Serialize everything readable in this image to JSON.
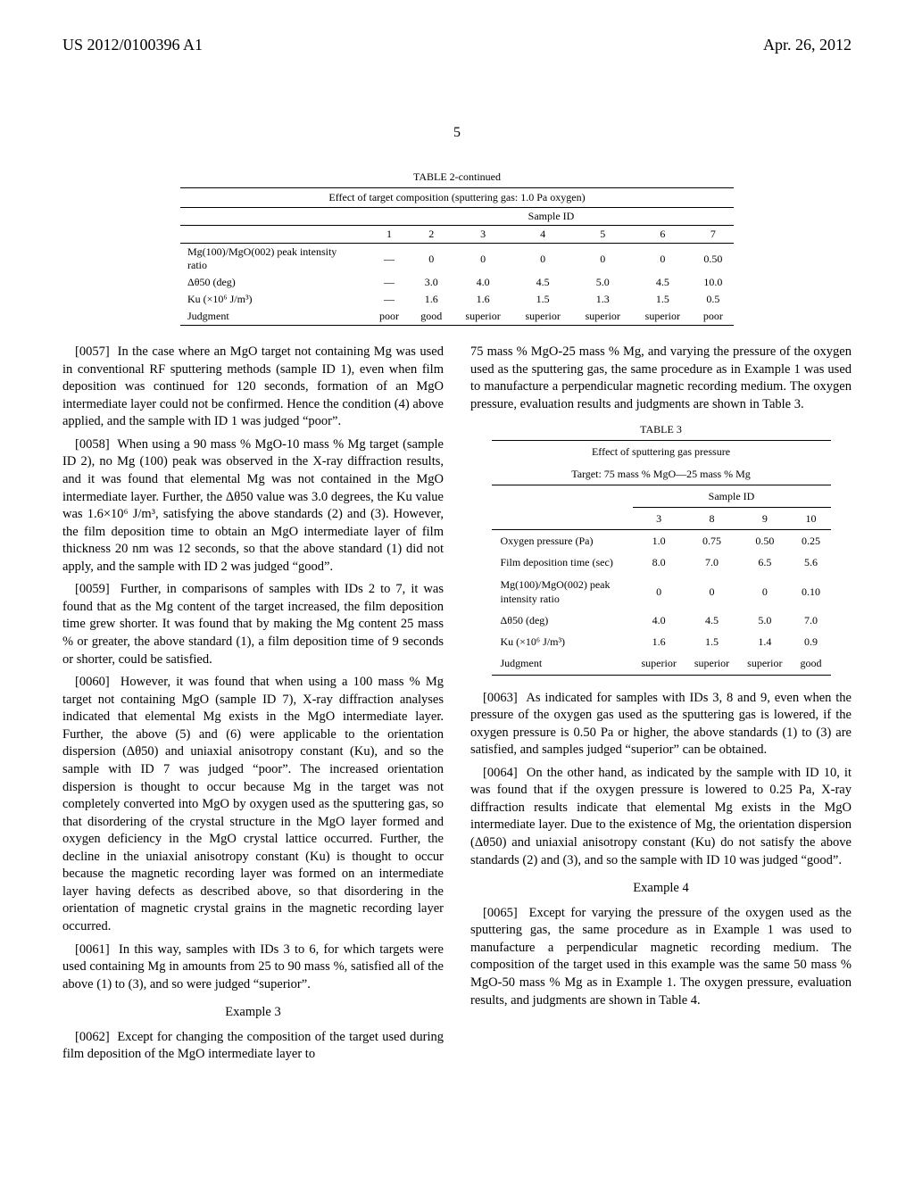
{
  "header": {
    "left": "US 2012/0100396 A1",
    "right": "Apr. 26, 2012",
    "page_number": "5"
  },
  "table2": {
    "title": "TABLE 2-continued",
    "caption": "Effect of target composition (sputtering gas: 1.0 Pa oxygen)",
    "sample_header": "Sample ID",
    "ids": [
      "1",
      "2",
      "3",
      "4",
      "5",
      "6",
      "7"
    ],
    "rows": [
      {
        "label": "Mg(100)/MgO(002) peak intensity ratio",
        "values": [
          "—",
          "0",
          "0",
          "0",
          "0",
          "0",
          "0.50"
        ]
      },
      {
        "label": "Δθ50 (deg)",
        "values": [
          "—",
          "3.0",
          "4.0",
          "4.5",
          "5.0",
          "4.5",
          "10.0"
        ]
      },
      {
        "label": "Ku (×10⁶ J/m³)",
        "values": [
          "—",
          "1.6",
          "1.6",
          "1.5",
          "1.3",
          "1.5",
          "0.5"
        ]
      },
      {
        "label": "Judgment",
        "values": [
          "poor",
          "good",
          "superior",
          "superior",
          "superior",
          "superior",
          "poor"
        ]
      }
    ]
  },
  "table3": {
    "title": "TABLE 3",
    "caption1": "Effect of sputtering gas pressure",
    "caption2": "Target: 75 mass % MgO—25 mass % Mg",
    "sample_header": "Sample ID",
    "ids": [
      "3",
      "8",
      "9",
      "10"
    ],
    "rows": [
      {
        "label": "Oxygen pressure (Pa)",
        "values": [
          "1.0",
          "0.75",
          "0.50",
          "0.25"
        ]
      },
      {
        "label": "Film deposition time (sec)",
        "values": [
          "8.0",
          "7.0",
          "6.5",
          "5.6"
        ]
      },
      {
        "label": "Mg(100)/MgO(002) peak intensity ratio",
        "values": [
          "0",
          "0",
          "0",
          "0.10"
        ]
      },
      {
        "label": "Δθ50 (deg)",
        "values": [
          "4.0",
          "4.5",
          "5.0",
          "7.0"
        ]
      },
      {
        "label": "Ku (×10⁶ J/m³)",
        "values": [
          "1.6",
          "1.5",
          "1.4",
          "0.9"
        ]
      },
      {
        "label": "Judgment",
        "values": [
          "superior",
          "superior",
          "superior",
          "good"
        ]
      }
    ]
  },
  "paragraphs_left": [
    {
      "num": "[0057]",
      "text": "In the case where an MgO target not containing Mg was used in conventional RF sputtering methods (sample ID 1), even when film deposition was continued for 120 seconds, formation of an MgO intermediate layer could not be confirmed. Hence the condition (4) above applied, and the sample with ID 1 was judged “poor”."
    },
    {
      "num": "[0058]",
      "text": "When using a 90 mass % MgO-10 mass % Mg target (sample ID 2), no Mg (100) peak was observed in the X-ray diffraction results, and it was found that elemental Mg was not contained in the MgO intermediate layer. Further, the Δθ50 value was 3.0 degrees, the Ku value was 1.6×10⁶ J/m³, satisfying the above standards (2) and (3). However, the film deposition time to obtain an MgO intermediate layer of film thickness 20 nm was 12 seconds, so that the above standard (1) did not apply, and the sample with ID 2 was judged “good”."
    },
    {
      "num": "[0059]",
      "text": "Further, in comparisons of samples with IDs 2 to 7, it was found that as the Mg content of the target increased, the film deposition time grew shorter. It was found that by making the Mg content 25 mass % or greater, the above standard (1), a film deposition time of 9 seconds or shorter, could be satisfied."
    },
    {
      "num": "[0060]",
      "text": "However, it was found that when using a 100 mass % Mg target not containing MgO (sample ID 7), X-ray diffraction analyses indicated that elemental Mg exists in the MgO intermediate layer. Further, the above (5) and (6) were applicable to the orientation dispersion (Δθ50) and uniaxial anisotropy constant (Ku), and so the sample with ID 7 was judged “poor”. The increased orientation dispersion is thought to occur because Mg in the target was not completely converted into MgO by oxygen used as the sputtering gas, so that disordering of the crystal structure in the MgO layer formed and oxygen deficiency in the MgO crystal lattice occurred. Further, the decline in the uniaxial anisotropy constant (Ku) is thought to occur because the magnetic recording layer was formed on an intermediate layer having defects as described above, so that disordering in the orientation of magnetic crystal grains in the magnetic recording layer occurred."
    },
    {
      "num": "[0061]",
      "text": "In this way, samples with IDs 3 to 6, for which targets were used containing Mg in amounts from 25 to 90 mass %, satisfied all of the above (1) to (3), and so were judged “superior”."
    }
  ],
  "example3_title": "Example 3",
  "paragraphs_left2": [
    {
      "num": "[0062]",
      "text": "Except for changing the composition of the target used during film deposition of the MgO intermediate layer to"
    }
  ],
  "paragraphs_right_top": [
    {
      "num": "",
      "text": "75 mass % MgO-25 mass % Mg, and varying the pressure of the oxygen used as the sputtering gas, the same procedure as in Example 1 was used to manufacture a perpendicular magnetic recording medium. The oxygen pressure, evaluation results and judgments are shown in Table 3."
    }
  ],
  "paragraphs_right": [
    {
      "num": "[0063]",
      "text": "As indicated for samples with IDs 3, 8 and 9, even when the pressure of the oxygen gas used as the sputtering gas is lowered, if the oxygen pressure is 0.50 Pa or higher, the above standards (1) to (3) are satisfied, and samples judged “superior” can be obtained."
    },
    {
      "num": "[0064]",
      "text": "On the other hand, as indicated by the sample with ID 10, it was found that if the oxygen pressure is lowered to 0.25 Pa, X-ray diffraction results indicate that elemental Mg exists in the MgO intermediate layer. Due to the existence of Mg, the orientation dispersion (Δθ50) and uniaxial anisotropy constant (Ku) do not satisfy the above standards (2) and (3), and so the sample with ID 10 was judged “good”."
    }
  ],
  "example4_title": "Example 4",
  "paragraphs_right2": [
    {
      "num": "[0065]",
      "text": "Except for varying the pressure of the oxygen used as the sputtering gas, the same procedure as in Example 1 was used to manufacture a perpendicular magnetic recording medium. The composition of the target used in this example was the same 50 mass % MgO-50 mass % Mg as in Example 1. The oxygen pressure, evaluation results, and judgments are shown in Table 4."
    }
  ]
}
